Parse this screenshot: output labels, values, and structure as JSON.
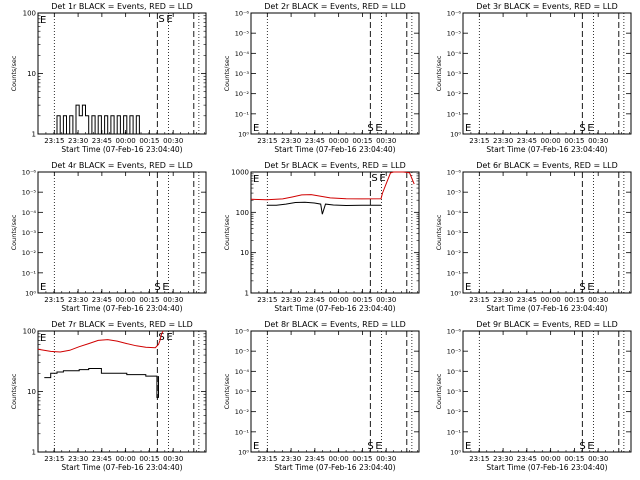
{
  "chart_data": [
    {
      "type": "line",
      "title": "Det 1r BLACK = Events, RED = LLD",
      "xlabel": "Start Time (07-Feb-16 23:04:40)",
      "ylabel": "Counts/sec",
      "x_ticks": [
        "23:15",
        "23:30",
        "23:45",
        "00:00",
        "00:15",
        "00:30"
      ],
      "y_ticks": [
        "1",
        "10",
        "100"
      ],
      "ylim": [
        1,
        100
      ],
      "log_y": true,
      "markers": {
        "s": "S",
        "e": "E",
        "left": "E"
      },
      "series": [
        {
          "color": "#000000",
          "kind": "events",
          "points": [
            [
              10,
              1
            ],
            [
              12,
              2
            ],
            [
              14,
              1
            ],
            [
              16,
              2
            ],
            [
              18,
              1
            ],
            [
              20,
              2
            ],
            [
              22,
              1
            ],
            [
              24,
              3
            ],
            [
              26,
              2
            ],
            [
              28,
              3
            ],
            [
              30,
              2
            ],
            [
              32,
              1
            ],
            [
              34,
              2
            ],
            [
              36,
              1
            ],
            [
              38,
              2
            ],
            [
              40,
              1
            ],
            [
              42,
              2
            ],
            [
              44,
              1
            ],
            [
              46,
              2
            ],
            [
              48,
              1
            ],
            [
              50,
              2
            ],
            [
              52,
              1
            ],
            [
              54,
              2
            ],
            [
              56,
              1
            ],
            [
              58,
              2
            ],
            [
              60,
              1
            ],
            [
              62,
              2
            ],
            [
              64,
              1
            ]
          ]
        }
      ]
    },
    {
      "type": "line",
      "title": "Det 2r BLACK = Events, RED = LLD",
      "xlabel": "Start Time (07-Feb-16 23:04:40)",
      "ylabel": "Counts/sec",
      "x_ticks": [
        "23:15",
        "23:30",
        "23:45",
        "00:00",
        "00:15",
        "00:30"
      ],
      "y_ticks": [
        "10⁰",
        "10⁻¹",
        "10⁻²",
        "10⁻³",
        "10⁻⁴",
        "10⁻⁵",
        "10⁻⁶"
      ],
      "markers": {
        "s": "S",
        "e": "E",
        "left": "E"
      },
      "series": []
    },
    {
      "type": "line",
      "title": "Det 3r BLACK = Events, RED = LLD",
      "xlabel": "Start Time (07-Feb-16 23:04:40)",
      "ylabel": "Counts/sec",
      "x_ticks": [
        "23:15",
        "23:30",
        "23:45",
        "00:00",
        "00:15",
        "00:30"
      ],
      "y_ticks": [
        "10⁰",
        "10⁻¹",
        "10⁻²",
        "10⁻³",
        "10⁻⁴",
        "10⁻⁵",
        "10⁻⁶"
      ],
      "markers": {
        "s": "S",
        "e": "E",
        "left": "E"
      },
      "series": []
    },
    {
      "type": "line",
      "title": "Det 4r BLACK = Events, RED = LLD",
      "xlabel": "Start Time (07-Feb-16 23:04:40)",
      "ylabel": "Counts/sec",
      "x_ticks": [
        "23:15",
        "23:30",
        "23:45",
        "00:00",
        "00:15",
        "00:30"
      ],
      "y_ticks": [
        "10⁰",
        "10⁻¹",
        "10⁻²",
        "10⁻³",
        "10⁻⁴",
        "10⁻⁵",
        "10⁻⁶"
      ],
      "markers": {
        "s": "S",
        "e": "E",
        "left": "E"
      },
      "series": []
    },
    {
      "type": "line",
      "title": "Det 5r BLACK = Events, RED = LLD",
      "xlabel": "Start Time (07-Feb-16 23:04:40)",
      "ylabel": "Counts/sec",
      "x_ticks": [
        "23:15",
        "23:30",
        "23:45",
        "00:00",
        "00:15",
        "00:30"
      ],
      "y_ticks": [
        "1",
        "10",
        "100",
        "1000"
      ],
      "ylim": [
        1,
        1000
      ],
      "log_y": true,
      "markers": {
        "s": "S",
        "e": "E",
        "left": "E"
      },
      "series": [
        {
          "color": "#d00000",
          "kind": "lld",
          "points": [
            [
              0,
              210
            ],
            [
              10,
              205
            ],
            [
              20,
              215
            ],
            [
              26,
              240
            ],
            [
              32,
              270
            ],
            [
              38,
              275
            ],
            [
              44,
              250
            ],
            [
              50,
              228
            ],
            [
              60,
              218
            ],
            [
              70,
              215
            ],
            [
              82,
              218
            ],
            [
              83,
              300
            ],
            [
              86,
              600
            ],
            [
              88,
              950
            ],
            [
              90,
              1000
            ],
            [
              96,
              1000
            ],
            [
              100,
              960
            ],
            [
              103,
              500
            ]
          ]
        }
      ]
    },
    {
      "type": "line",
      "title": "Det 6r BLACK = Events, RED = LLD",
      "xlabel": "Start Time (07-Feb-16 23:04:40)",
      "ylabel": "Counts/sec",
      "x_ticks": [
        "23:15",
        "23:30",
        "23:45",
        "00:00",
        "00:15",
        "00:30"
      ],
      "y_ticks": [
        "10⁰",
        "10⁻¹",
        "10⁻²",
        "10⁻³",
        "10⁻⁴",
        "10⁻⁵",
        "10⁻⁶"
      ],
      "markers": {
        "s": "S",
        "e": "E",
        "left": "E"
      },
      "series": []
    },
    {
      "type": "line",
      "title": "Det 7r BLACK = Events, RED = LLD",
      "xlabel": "Start Time (07-Feb-16 23:04:40)",
      "ylabel": "Counts/sec",
      "x_ticks": [
        "23:15",
        "23:30",
        "23:45",
        "00:00",
        "00:15",
        "00:30"
      ],
      "y_ticks": [
        "1",
        "10",
        "100"
      ],
      "ylim": [
        1,
        100
      ],
      "log_y": true,
      "markers": {
        "s": "S",
        "e": "E",
        "left": "E"
      },
      "series": [
        {
          "color": "#d00000",
          "kind": "lld",
          "points": [
            [
              0,
              50
            ],
            [
              8,
              46
            ],
            [
              14,
              45
            ],
            [
              20,
              48
            ],
            [
              26,
              55
            ],
            [
              32,
              62
            ],
            [
              38,
              70
            ],
            [
              44,
              72
            ],
            [
              50,
              68
            ],
            [
              56,
              62
            ],
            [
              62,
              57
            ],
            [
              68,
              54
            ],
            [
              74,
              53
            ],
            [
              76,
              60
            ],
            [
              77,
              70
            ],
            [
              78,
              90
            ],
            [
              79,
              100
            ]
          ]
        },
        {
          "color": "#000000",
          "kind": "events",
          "points": [
            [
              4,
              17
            ],
            [
              8,
              20
            ],
            [
              12,
              21
            ],
            [
              16,
              22
            ],
            [
              20,
              22
            ],
            [
              26,
              23
            ],
            [
              32,
              24
            ],
            [
              38,
              24
            ],
            [
              40,
              20
            ],
            [
              44,
              20
            ],
            [
              50,
              20
            ],
            [
              56,
              19
            ],
            [
              62,
              19
            ],
            [
              68,
              18
            ],
            [
              74,
              18
            ],
            [
              75,
              8
            ],
            [
              76,
              18
            ]
          ]
        }
      ]
    },
    {
      "type": "line",
      "title": "Det 8r BLACK = Events, RED = LLD",
      "xlabel": "Start Time (07-Feb-16 23:04:40)",
      "ylabel": "Counts/sec",
      "x_ticks": [
        "23:15",
        "23:30",
        "23:45",
        "00:00",
        "00:15",
        "00:30"
      ],
      "y_ticks": [
        "10⁰",
        "10⁻¹",
        "10⁻²",
        "10⁻³",
        "10⁻⁴",
        "10⁻⁵",
        "10⁻⁶"
      ],
      "markers": {
        "s": "S",
        "e": "E",
        "left": "E"
      },
      "series": []
    },
    {
      "type": "line",
      "title": "Det 9r BLACK = Events, RED = LLD",
      "xlabel": "Start Time (07-Feb-16 23:04:40)",
      "ylabel": "Counts/sec",
      "x_ticks": [
        "23:15",
        "23:30",
        "23:45",
        "00:00",
        "00:15",
        "00:30"
      ],
      "y_ticks": [
        "10⁰",
        "10⁻¹",
        "10⁻²",
        "10⁻³",
        "10⁻⁴",
        "10⁻⁵",
        "10⁻⁶"
      ],
      "markers": {
        "s": "S",
        "e": "E",
        "left": "E"
      },
      "series": []
    }
  ]
}
